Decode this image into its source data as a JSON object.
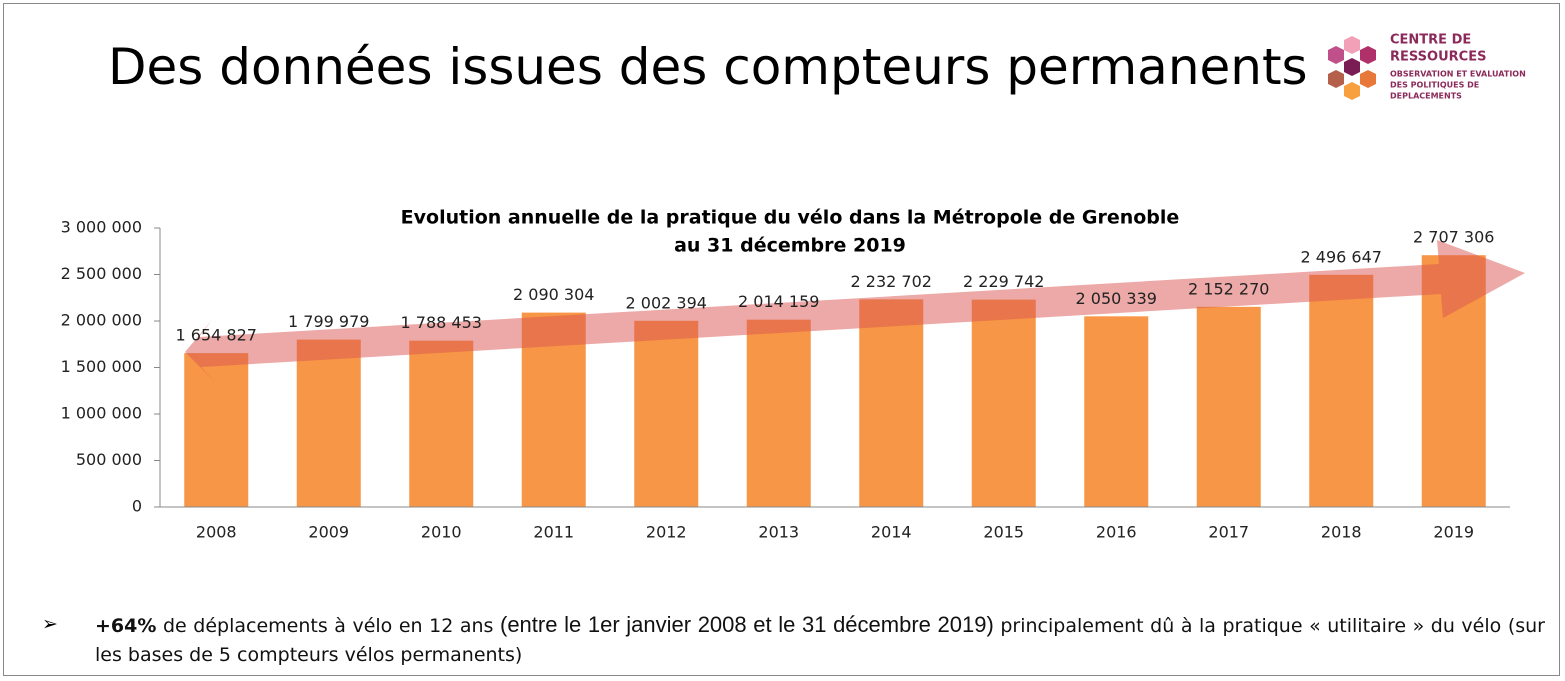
{
  "slide_title": "Des données issues des compteurs permanents",
  "logo": {
    "lines": [
      "CENTRE DE",
      "RESSOURCES",
      "OBSERVATION ET EVALUATION",
      "DES POLITIQUES DE",
      "DEPLACEMENTS"
    ]
  },
  "chart_data": {
    "type": "bar",
    "title": [
      "Evolution annuelle de la pratique du vélo dans la Métropole de Grenoble",
      "au 31 décembre 2019"
    ],
    "categories": [
      "2008",
      "2009",
      "2010",
      "2011",
      "2012",
      "2013",
      "2014",
      "2015",
      "2016",
      "2017",
      "2018",
      "2019"
    ],
    "values": [
      1654827,
      1799979,
      1788453,
      2090304,
      2002394,
      2014159,
      2232702,
      2229742,
      2050339,
      2152270,
      2496647,
      2707306
    ],
    "value_labels": [
      "1 654 827",
      "1 799 979",
      "1 788 453",
      "2 090 304",
      "2 002 394",
      "2 014 159",
      "2 232 702",
      "2 229 742",
      "2 050 339",
      "2 152 270",
      "2 496 647",
      "2 707 306"
    ],
    "color": "#f79646",
    "ylim": [
      0,
      3000000
    ],
    "yticks": [
      0,
      {
        "value": 500000,
        "label": "500 000"
      },
      {
        "value": 1000000,
        "label": "1 000 000"
      },
      {
        "value": 1500000,
        "label": "1 500 000"
      },
      {
        "value": 2000000,
        "label": "2 000 000"
      },
      {
        "value": 2500000,
        "label": "2 500 000"
      },
      {
        "value": 3000000,
        "label": "3 000 000"
      }
    ],
    "grid": false
  },
  "bullet": {
    "bold": "+64%",
    "text1": " de déplacements à vélo en 12 ans ",
    "paren": "(entre le 1er janvier 2008 et le 31 décembre 2019)",
    "text2": " principalement dû à la pratique « utilitaire » du vélo (sur les bases de 5 compteurs vélos permanents)"
  }
}
